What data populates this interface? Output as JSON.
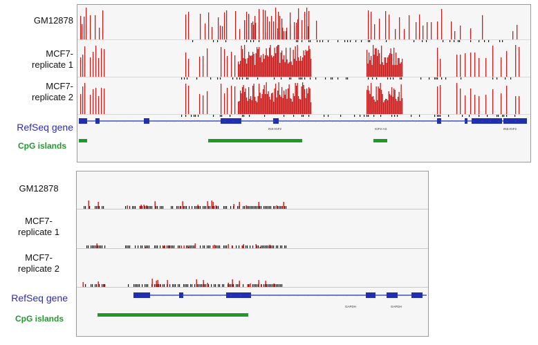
{
  "top_panel": {
    "labels": {
      "track1": "GM12878",
      "track2_line1": "MCF7-",
      "track2_line2": "replicate 1",
      "track3_line1": "MCF7-",
      "track3_line2": "replicate 2",
      "refseq": "RefSeq gene",
      "cpg": "CpG islands"
    },
    "gene_labels": [
      "INS-IGF2",
      "IGF2-AS",
      "INS-IGF2"
    ]
  },
  "bottom_panel": {
    "labels": {
      "track1": "GM12878",
      "track2_line1": "MCF7-",
      "track2_line2": "replicate 1",
      "track3_line1": "MCF7-",
      "track3_line2": "replicate 2",
      "refseq": "RefSeq gene",
      "cpg": "CpG islands"
    },
    "gene_labels": [
      "GAPDH",
      "GAPDH"
    ]
  },
  "colors": {
    "methylation_bar": "#cc1b1b",
    "unmethylated_tick": "#1a1a1a",
    "gene_model": "#1f2fb0",
    "cpg_island": "#1f9a2a",
    "panel_border": "#9a9a9a"
  }
}
